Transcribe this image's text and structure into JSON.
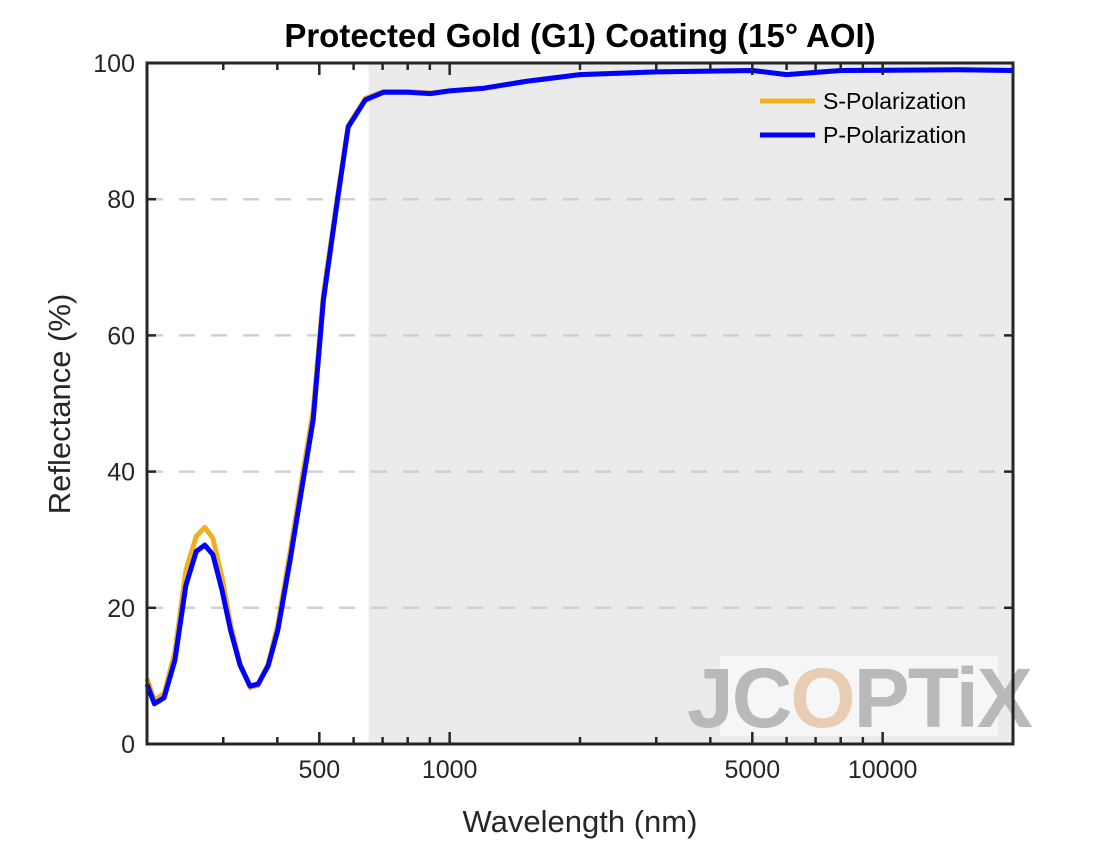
{
  "chart_data": {
    "type": "line",
    "title": "Protected Gold (G1) Coating  (15° AOI)",
    "xlabel": "Wavelength (nm)",
    "ylabel": "Reflectance (%)",
    "xscale": "log",
    "xlim": [
      200,
      20000
    ],
    "ylim": [
      0,
      100
    ],
    "xticks": [
      500,
      1000,
      5000,
      10000
    ],
    "xtick_labels": [
      "500",
      "1000",
      "5000",
      "10000"
    ],
    "yticks": [
      0,
      20,
      40,
      60,
      80,
      100
    ],
    "ytick_labels": [
      "0",
      "20",
      "40",
      "60",
      "80",
      "100"
    ],
    "grid": "horizontal dashed",
    "shaded_region": {
      "from": 650,
      "to": 20000,
      "color": "#ebebeb"
    },
    "legend": "top-right",
    "watermark": "JCOPTIX",
    "series": [
      {
        "name": "S-Polarization",
        "color": "#f0b020",
        "x": [
          200,
          208,
          219,
          232,
          246,
          260,
          272,
          284,
          298,
          312,
          328,
          346,
          361,
          381,
          401,
          428,
          456,
          484,
          511,
          551,
          583,
          639,
          703,
          800,
          903,
          1000,
          1200,
          1500,
          2000,
          3000,
          5000,
          6000,
          8000,
          15000,
          20000
        ],
        "y": [
          9.6,
          6.4,
          7.4,
          13.5,
          25.5,
          30.5,
          31.8,
          30.2,
          24.5,
          17.6,
          11.8,
          8.3,
          8.6,
          11.8,
          17.5,
          28.2,
          39.0,
          49.0,
          66.0,
          80.5,
          90.8,
          94.8,
          95.8,
          95.8,
          95.6,
          95.9,
          96.3,
          97.3,
          98.3,
          98.7,
          98.9,
          98.3,
          98.9,
          99.0,
          98.9
        ]
      },
      {
        "name": "P-Polarization",
        "color": "#0000ff",
        "x": [
          200,
          208,
          219,
          232,
          246,
          260,
          272,
          284,
          298,
          312,
          328,
          346,
          361,
          381,
          401,
          428,
          456,
          484,
          511,
          551,
          583,
          639,
          703,
          800,
          903,
          1000,
          1200,
          1500,
          2000,
          3000,
          5000,
          6000,
          8000,
          15000,
          20000
        ],
        "y": [
          8.8,
          5.9,
          6.8,
          12.3,
          23.3,
          28.3,
          29.2,
          27.8,
          22.6,
          16.7,
          11.6,
          8.5,
          8.8,
          11.5,
          16.7,
          27.0,
          37.7,
          47.6,
          65.2,
          80.0,
          90.6,
          94.6,
          95.7,
          95.7,
          95.5,
          95.9,
          96.3,
          97.3,
          98.3,
          98.7,
          98.9,
          98.3,
          98.9,
          99.0,
          98.9
        ]
      }
    ]
  }
}
